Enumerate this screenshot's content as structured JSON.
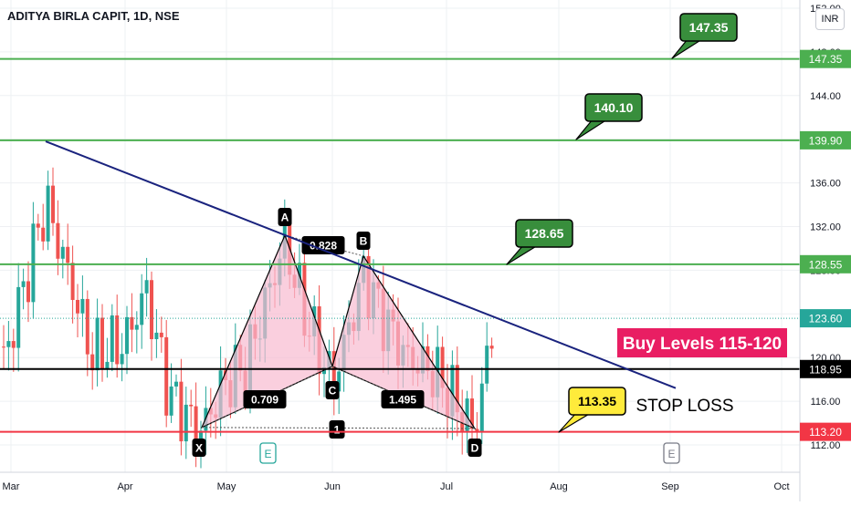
{
  "chart_title": "ADITYA BIRLA CAPIT, 1D, NSE",
  "currency_label": "INR",
  "chart_data": {
    "type": "candlestick",
    "symbol": "ADITYA BIRLA CAPIT",
    "interval": "1D",
    "exchange": "NSE",
    "y_ticks": [
      "112.00",
      "116.00",
      "120.00",
      "124.00",
      "128.00",
      "132.00",
      "136.00",
      "140.00",
      "144.00",
      "148.00",
      "152.00"
    ],
    "x_ticks": [
      "Mar",
      "Apr",
      "May",
      "Jun",
      "Jul",
      "Aug",
      "Sep",
      "Oct"
    ],
    "ylim": [
      111.3,
      152.7
    ],
    "last_price": "123.60",
    "price_levels": [
      {
        "value": 147.35,
        "label": "147.35",
        "color": "#4caf50"
      },
      {
        "value": 139.9,
        "label": "139.90",
        "color": "#4caf50"
      },
      {
        "value": 128.55,
        "label": "128.55",
        "color": "#4caf50"
      },
      {
        "value": 118.95,
        "label": "118.95",
        "color": "#000000"
      },
      {
        "value": 113.2,
        "label": "113.20",
        "color": "#f23645"
      }
    ],
    "callouts": [
      {
        "text": "147.35",
        "color": "#388e3c"
      },
      {
        "text": "140.10",
        "color": "#388e3c"
      },
      {
        "text": "128.65",
        "color": "#388e3c"
      },
      {
        "text": "113.35",
        "color": "#ffeb3b"
      }
    ],
    "annotations": {
      "buy_levels": "Buy Levels 115-120",
      "stop_loss": "STOP LOSS"
    },
    "harmonic_pattern": {
      "points": [
        "X",
        "A",
        "B",
        "C",
        "D"
      ],
      "ratios": [
        "0.828",
        "0.709",
        "1.495",
        "1"
      ]
    },
    "event_markers": [
      "E",
      "E"
    ],
    "colors": {
      "up": "#26a69a",
      "down": "#ef5350",
      "trendline": "#1a237e",
      "pattern_fill": "#f8bbd0"
    }
  }
}
